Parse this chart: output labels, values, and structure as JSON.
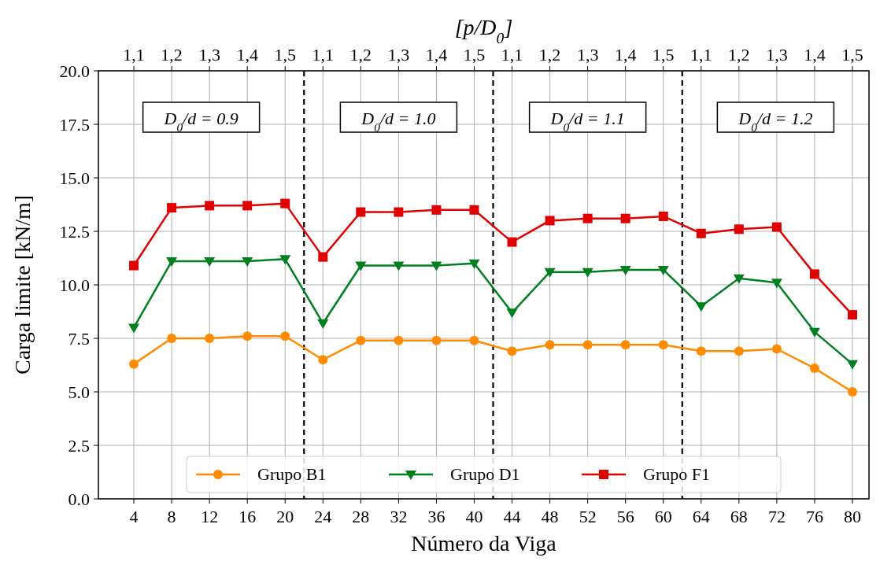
{
  "chart_data": {
    "type": "line",
    "xlabel": "Número da Viga",
    "ylabel": "Carga limite [kN/m]",
    "x2label": "[p/D$_{0}$]",
    "x": [
      4,
      8,
      12,
      16,
      20,
      24,
      28,
      32,
      36,
      40,
      44,
      48,
      52,
      56,
      60,
      64,
      68,
      72,
      76,
      80
    ],
    "xlim": [
      0.25,
      81.75
    ],
    "xticks": [
      4,
      8,
      12,
      16,
      20,
      24,
      28,
      32,
      36,
      40,
      44,
      48,
      52,
      56,
      60,
      64,
      68,
      72,
      76,
      80
    ],
    "ylim": [
      0,
      20
    ],
    "yticks": [
      {
        "value": 0,
        "label": "0.0"
      },
      {
        "value": 2.5,
        "label": "2.5"
      },
      {
        "value": 5,
        "label": "5.0"
      },
      {
        "value": 7.5,
        "label": "7.5"
      },
      {
        "value": 10,
        "label": "10.0"
      },
      {
        "value": 12.5,
        "label": "12.5"
      },
      {
        "value": 15,
        "label": "15.0"
      },
      {
        "value": 17.5,
        "label": "17.5"
      },
      {
        "value": 20,
        "label": "20.0"
      }
    ],
    "grid": true,
    "legend": "bottom",
    "line_style": "solid",
    "series": [
      {
        "name": "Grupo B1",
        "color": "#ff8c00",
        "marker": "circle",
        "values": [
          6.3,
          7.5,
          7.5,
          7.6,
          7.6,
          6.5,
          7.4,
          7.4,
          7.4,
          7.4,
          6.9,
          7.2,
          7.2,
          7.2,
          7.2,
          6.9,
          6.9,
          7.0,
          6.1,
          5.0
        ]
      },
      {
        "name": "Grupo D1",
        "color": "#007f1f",
        "marker": "triangle",
        "values": [
          8.0,
          11.1,
          11.1,
          11.1,
          11.2,
          8.2,
          10.9,
          10.9,
          10.9,
          11.0,
          8.7,
          10.6,
          10.6,
          10.7,
          10.7,
          9.0,
          10.3,
          10.1,
          7.8,
          6.3
        ]
      },
      {
        "name": "Grupo F1",
        "color": "#e00000",
        "marker": "square",
        "values": [
          10.9,
          13.6,
          13.7,
          13.7,
          13.8,
          11.3,
          13.4,
          13.4,
          13.5,
          13.5,
          12.0,
          13.0,
          13.1,
          13.1,
          13.2,
          12.4,
          12.6,
          12.7,
          10.5,
          8.6
        ]
      }
    ],
    "ref_lines": [
      {
        "axis": "x",
        "value": 22,
        "color": "#000000",
        "line_style": "dashed"
      },
      {
        "axis": "x",
        "value": 42,
        "color": "#000000",
        "line_style": "dashed"
      },
      {
        "axis": "x",
        "value": 62,
        "color": "#000000",
        "line_style": "dashed"
      }
    ],
    "annotations": [
      "D$_{0}$/d = 0.9",
      "D$_{0}$/d = 1.0",
      "D$_{0}$/d = 1.1",
      "D$_{0}$/d = 1.2",
      {
        "text": "1,1",
        "x": 4
      },
      {
        "text": "1,2",
        "x": 8
      },
      {
        "text": "1,3",
        "x": 12
      },
      {
        "text": "1,4",
        "x": 16
      },
      {
        "text": "1,5",
        "x": 20
      },
      {
        "text": "1,1",
        "x": 24
      },
      {
        "text": "1,2",
        "x": 28
      },
      {
        "text": "1,3",
        "x": 32
      },
      {
        "text": "1,4",
        "x": 36
      },
      {
        "text": "1,5",
        "x": 40
      },
      {
        "text": "1,1",
        "x": 44
      },
      {
        "text": "1,2",
        "x": 48
      },
      {
        "text": "1,3",
        "x": 52
      },
      {
        "text": "1,4",
        "x": 56
      },
      {
        "text": "1,5",
        "x": 60
      },
      {
        "text": "1,1",
        "x": 64
      },
      {
        "text": "1,2",
        "x": 68
      },
      {
        "text": "1,3",
        "x": 72
      },
      {
        "text": "1,4",
        "x": 76
      },
      {
        "text": "1,5",
        "x": 80
      }
    ]
  }
}
